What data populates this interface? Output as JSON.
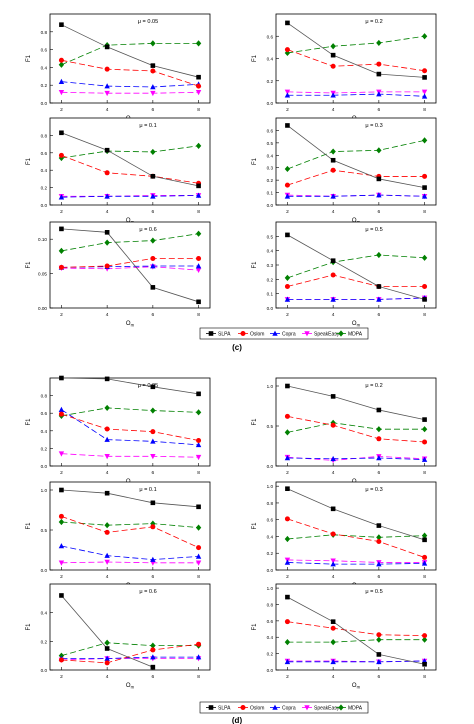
{
  "figure": {
    "legend_labels": [
      "SLPA",
      "Oslom",
      "Copra",
      "SpeakEasy",
      "MDPA"
    ],
    "section_c_label": "(c)",
    "section_d_label": "(d)"
  },
  "styles": {
    "SLPA": {
      "color": "#000000",
      "marker": "square",
      "dash": "6,3"
    },
    "Oslom": {
      "color": "#ff0000",
      "marker": "circle",
      "dash": "6,3"
    },
    "Copra": {
      "color": "#0000ff",
      "marker": "triangle",
      "dash": "6,3"
    },
    "SpeakEasy": {
      "color": "#ff00ff",
      "marker": "tri-down",
      "dash": "6,3"
    },
    "MDPA": {
      "color": "#008000",
      "marker": "diamond",
      "dash": "6,3"
    }
  },
  "chart_data": [
    {
      "type": "line",
      "title": "μ = 0.05",
      "xlabel": "O_m",
      "ylabel": "F1",
      "x": [
        2,
        4,
        6,
        8
      ],
      "xticks": [
        2,
        4,
        6,
        8
      ],
      "ylim": [
        0,
        1.0
      ],
      "yticks": [
        0.0,
        0.2,
        0.4,
        0.6,
        0.8
      ],
      "series": [
        {
          "name": "SLPA",
          "values": [
            0.88,
            0.63,
            0.42,
            0.29
          ]
        },
        {
          "name": "Oslom",
          "values": [
            0.48,
            0.38,
            0.36,
            0.19
          ]
        },
        {
          "name": "Copra",
          "values": [
            0.24,
            0.19,
            0.18,
            0.21
          ]
        },
        {
          "name": "SpeakEasy",
          "values": [
            0.12,
            0.11,
            0.11,
            0.12
          ]
        },
        {
          "name": "MDPA",
          "values": [
            0.43,
            0.65,
            0.67,
            0.67
          ]
        }
      ]
    },
    {
      "type": "line",
      "title": "μ = 0.2",
      "xlabel": "O_m",
      "ylabel": "F1",
      "x": [
        2,
        4,
        6,
        8
      ],
      "xticks": [
        2,
        4,
        6,
        8
      ],
      "ylim": [
        0,
        0.8
      ],
      "yticks": [
        0.0,
        0.2,
        0.4,
        0.6
      ],
      "series": [
        {
          "name": "SLPA",
          "values": [
            0.72,
            0.43,
            0.26,
            0.23
          ]
        },
        {
          "name": "Oslom",
          "values": [
            0.48,
            0.33,
            0.35,
            0.29
          ]
        },
        {
          "name": "Copra",
          "values": [
            0.07,
            0.07,
            0.08,
            0.06
          ]
        },
        {
          "name": "SpeakEasy",
          "values": [
            0.1,
            0.09,
            0.1,
            0.1
          ]
        },
        {
          "name": "MDPA",
          "values": [
            0.45,
            0.51,
            0.54,
            0.6
          ]
        }
      ]
    },
    {
      "type": "line",
      "title": "μ = 0.1",
      "xlabel": "O_m",
      "ylabel": "F1",
      "x": [
        2,
        4,
        6,
        8
      ],
      "xticks": [
        2,
        4,
        6,
        8
      ],
      "ylim": [
        0,
        1.0
      ],
      "yticks": [
        0.0,
        0.2,
        0.4,
        0.6,
        0.8
      ],
      "series": [
        {
          "name": "SLPA",
          "values": [
            0.83,
            0.63,
            0.33,
            0.22
          ]
        },
        {
          "name": "Oslom",
          "values": [
            0.57,
            0.37,
            0.33,
            0.25
          ]
        },
        {
          "name": "Copra",
          "values": [
            0.09,
            0.1,
            0.1,
            0.11
          ]
        },
        {
          "name": "SpeakEasy",
          "values": [
            0.1,
            0.1,
            0.11,
            0.11
          ]
        },
        {
          "name": "MDPA",
          "values": [
            0.54,
            0.62,
            0.61,
            0.68
          ]
        }
      ]
    },
    {
      "type": "line",
      "title": "μ = 0.3",
      "xlabel": "O_m",
      "ylabel": "F1",
      "x": [
        2,
        4,
        6,
        8
      ],
      "xticks": [
        2,
        4,
        6,
        8
      ],
      "ylim": [
        0,
        0.7
      ],
      "yticks": [
        0.0,
        0.1,
        0.2,
        0.3,
        0.4,
        0.5,
        0.6
      ],
      "series": [
        {
          "name": "SLPA",
          "values": [
            0.64,
            0.36,
            0.21,
            0.14
          ]
        },
        {
          "name": "Oslom",
          "values": [
            0.16,
            0.28,
            0.23,
            0.23
          ]
        },
        {
          "name": "Copra",
          "values": [
            0.07,
            0.07,
            0.08,
            0.07
          ]
        },
        {
          "name": "SpeakEasy",
          "values": [
            0.08,
            0.07,
            0.08,
            0.07
          ]
        },
        {
          "name": "MDPA",
          "values": [
            0.29,
            0.43,
            0.44,
            0.52
          ]
        }
      ]
    },
    {
      "type": "line",
      "title": "μ = 0.6",
      "xlabel": "O_m",
      "ylabel": "F1",
      "x": [
        2,
        4,
        6,
        8
      ],
      "xticks": [
        2,
        4,
        6,
        8
      ],
      "ylim": [
        0,
        0.125
      ],
      "yticks": [
        0.0,
        0.05,
        0.1
      ],
      "series": [
        {
          "name": "SLPA",
          "values": [
            0.115,
            0.11,
            0.03,
            0.009
          ]
        },
        {
          "name": "Oslom",
          "values": [
            0.059,
            0.061,
            0.072,
            0.072
          ]
        },
        {
          "name": "Copra",
          "values": [
            0.059,
            0.06,
            0.061,
            0.061
          ]
        },
        {
          "name": "SpeakEasy",
          "values": [
            0.058,
            0.057,
            0.06,
            0.055
          ]
        },
        {
          "name": "MDPA",
          "values": [
            0.083,
            0.095,
            0.098,
            0.108
          ]
        }
      ]
    },
    {
      "type": "line",
      "title": "μ = 0.5",
      "xlabel": "O_m",
      "ylabel": "F1",
      "x": [
        2,
        4,
        6,
        8
      ],
      "xticks": [
        2,
        4,
        6,
        8
      ],
      "ylim": [
        0,
        0.6
      ],
      "yticks": [
        0.0,
        0.1,
        0.2,
        0.3,
        0.4,
        0.5
      ],
      "series": [
        {
          "name": "SLPA",
          "values": [
            0.51,
            0.33,
            0.15,
            0.06
          ]
        },
        {
          "name": "Oslom",
          "values": [
            0.15,
            0.23,
            0.15,
            0.15
          ]
        },
        {
          "name": "Copra",
          "values": [
            0.06,
            0.06,
            0.06,
            0.07
          ]
        },
        {
          "name": "SpeakEasy",
          "values": [
            0.06,
            0.06,
            0.06,
            0.07
          ]
        },
        {
          "name": "MDPA",
          "values": [
            0.21,
            0.32,
            0.37,
            0.35
          ]
        }
      ]
    },
    {
      "type": "line",
      "title": "μ = 0.05",
      "xlabel": "O_m",
      "ylabel": "F1",
      "x": [
        2,
        4,
        6,
        8
      ],
      "xticks": [
        2,
        4,
        6,
        8
      ],
      "ylim": [
        0,
        1.0
      ],
      "yticks": [
        0.0,
        0.2,
        0.4,
        0.6,
        0.8
      ],
      "series": [
        {
          "name": "SLPA",
          "values": [
            1.0,
            0.99,
            0.9,
            0.82
          ]
        },
        {
          "name": "Oslom",
          "values": [
            0.59,
            0.42,
            0.39,
            0.29
          ]
        },
        {
          "name": "Copra",
          "values": [
            0.64,
            0.3,
            0.28,
            0.24
          ]
        },
        {
          "name": "SpeakEasy",
          "values": [
            0.14,
            0.11,
            0.11,
            0.1
          ]
        },
        {
          "name": "MDPA",
          "values": [
            0.57,
            0.66,
            0.63,
            0.61
          ]
        }
      ]
    },
    {
      "type": "line",
      "title": "μ = 0.2",
      "xlabel": "O_m",
      "ylabel": "F1",
      "x": [
        2,
        4,
        6,
        8
      ],
      "xticks": [
        2,
        4,
        6,
        8
      ],
      "ylim": [
        0,
        1.1
      ],
      "yticks": [
        0.0,
        0.5,
        1.0
      ],
      "series": [
        {
          "name": "SLPA",
          "values": [
            1.0,
            0.87,
            0.7,
            0.58
          ]
        },
        {
          "name": "Oslom",
          "values": [
            0.62,
            0.51,
            0.34,
            0.3
          ]
        },
        {
          "name": "Copra",
          "values": [
            0.1,
            0.09,
            0.1,
            0.08
          ]
        },
        {
          "name": "SpeakEasy",
          "values": [
            0.11,
            0.07,
            0.12,
            0.09
          ]
        },
        {
          "name": "MDPA",
          "values": [
            0.42,
            0.54,
            0.46,
            0.46
          ]
        }
      ]
    },
    {
      "type": "line",
      "title": "μ = 0.1",
      "xlabel": "O_m",
      "ylabel": "F1",
      "x": [
        2,
        4,
        6,
        8
      ],
      "xticks": [
        2,
        4,
        6,
        8
      ],
      "ylim": [
        0,
        1.1
      ],
      "yticks": [
        0.0,
        0.5,
        1.0
      ],
      "series": [
        {
          "name": "SLPA",
          "values": [
            1.0,
            0.96,
            0.84,
            0.79
          ]
        },
        {
          "name": "Oslom",
          "values": [
            0.67,
            0.47,
            0.54,
            0.28
          ]
        },
        {
          "name": "Copra",
          "values": [
            0.3,
            0.18,
            0.13,
            0.17
          ]
        },
        {
          "name": "SpeakEasy",
          "values": [
            0.09,
            0.1,
            0.09,
            0.09
          ]
        },
        {
          "name": "MDPA",
          "values": [
            0.6,
            0.56,
            0.58,
            0.53
          ]
        }
      ]
    },
    {
      "type": "line",
      "title": "μ = 0.3",
      "xlabel": "O_m",
      "ylabel": "F1",
      "x": [
        2,
        4,
        6,
        8
      ],
      "xticks": [
        2,
        4,
        6,
        8
      ],
      "ylim": [
        0,
        1.05
      ],
      "yticks": [
        0.0,
        0.2,
        0.4,
        0.6,
        0.8,
        1.0
      ],
      "series": [
        {
          "name": "SLPA",
          "values": [
            0.97,
            0.73,
            0.53,
            0.36
          ]
        },
        {
          "name": "Oslom",
          "values": [
            0.61,
            0.43,
            0.34,
            0.15
          ]
        },
        {
          "name": "Copra",
          "values": [
            0.09,
            0.07,
            0.07,
            0.08
          ]
        },
        {
          "name": "SpeakEasy",
          "values": [
            0.12,
            0.11,
            0.09,
            0.09
          ]
        },
        {
          "name": "MDPA",
          "values": [
            0.37,
            0.42,
            0.39,
            0.41
          ]
        }
      ]
    },
    {
      "type": "line",
      "title": "μ = 0.6",
      "xlabel": "O_m",
      "ylabel": "F1",
      "x": [
        2,
        4,
        6,
        8
      ],
      "xticks": [
        2,
        4,
        6,
        8
      ],
      "ylim": [
        0,
        0.6
      ],
      "yticks": [
        0.0,
        0.2,
        0.4
      ],
      "series": [
        {
          "name": "SLPA",
          "values": [
            0.52,
            0.15,
            0.02,
            null
          ]
        },
        {
          "name": "Oslom",
          "values": [
            0.07,
            0.05,
            0.14,
            0.18
          ]
        },
        {
          "name": "Copra",
          "values": [
            0.08,
            0.08,
            0.09,
            0.09
          ]
        },
        {
          "name": "SpeakEasy",
          "values": [
            0.07,
            0.08,
            0.08,
            0.08
          ]
        },
        {
          "name": "MDPA",
          "values": [
            0.1,
            0.19,
            0.17,
            0.17
          ]
        }
      ]
    },
    {
      "type": "line",
      "title": "μ = 0.5",
      "xlabel": "O_m",
      "ylabel": "F1",
      "x": [
        2,
        4,
        6,
        8
      ],
      "xticks": [
        2,
        4,
        6,
        8
      ],
      "ylim": [
        0,
        1.05
      ],
      "yticks": [
        0.0,
        0.2,
        0.4,
        0.6,
        0.8,
        1.0
      ],
      "series": [
        {
          "name": "SLPA",
          "values": [
            0.89,
            0.59,
            0.19,
            0.07
          ]
        },
        {
          "name": "Oslom",
          "values": [
            0.59,
            0.51,
            0.43,
            0.42
          ]
        },
        {
          "name": "Copra",
          "values": [
            0.1,
            0.1,
            0.1,
            0.11
          ]
        },
        {
          "name": "SpeakEasy",
          "values": [
            0.11,
            0.11,
            0.1,
            0.11
          ]
        },
        {
          "name": "MDPA",
          "values": [
            0.34,
            0.34,
            0.37,
            0.37
          ]
        }
      ]
    }
  ]
}
